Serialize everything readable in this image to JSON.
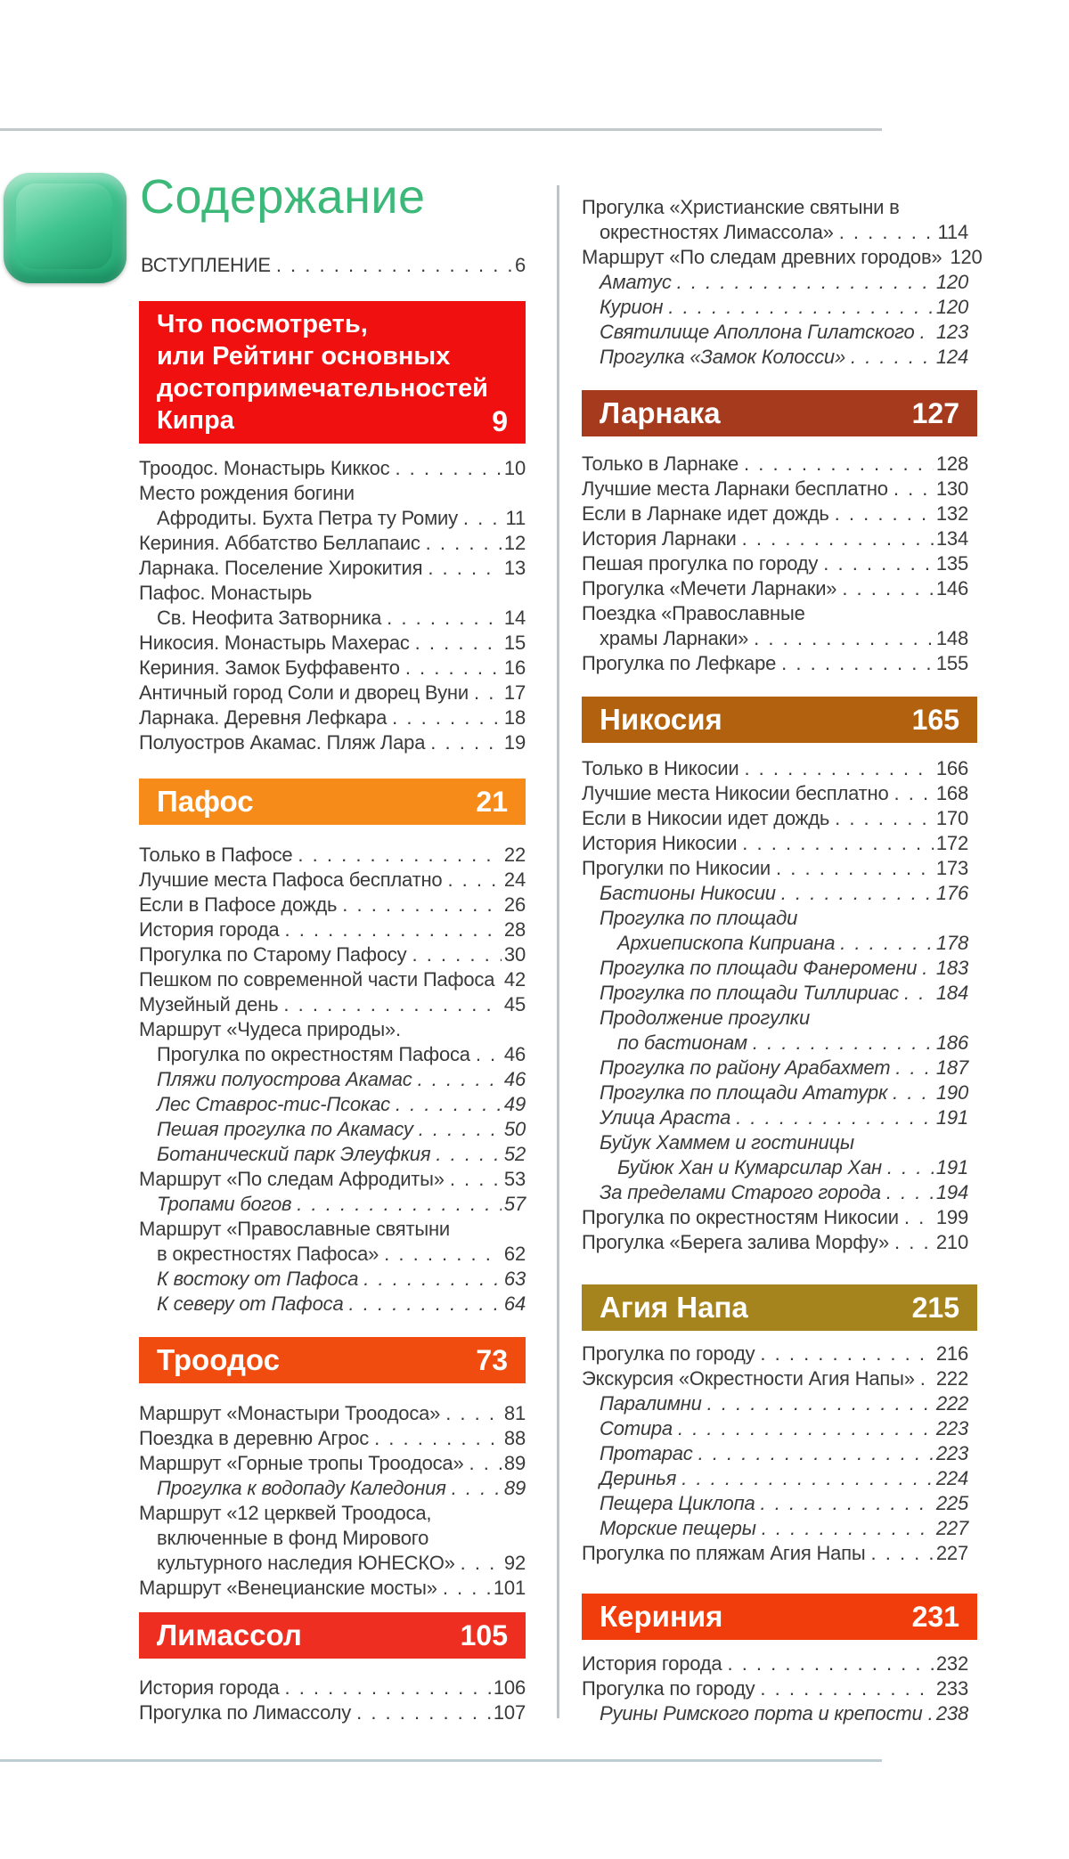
{
  "title": "Содержание",
  "intro": {
    "label": "ВСТУПЛЕНИЕ",
    "page": "6"
  },
  "colors": {
    "title_green": "#3cb878",
    "rating_red": "#f01010",
    "pafos_orange": "#f68b1a",
    "troodos_orange_red": "#f04c10",
    "limassol_red": "#ef2e22",
    "larnaka_brick": "#a53a1d",
    "nikosia_caramel": "#b2620f",
    "agia_napa_gold": "#a6841d",
    "kerinia_orange_red": "#f13c0c"
  },
  "columns": {
    "left": [
      {
        "type": "header",
        "id": "rating",
        "title_lines": [
          "Что посмотреть,",
          "или Рейтинг основных",
          "достопримечательностей",
          "Кипра"
        ],
        "page": "9",
        "color": "#f01010"
      },
      {
        "type": "list",
        "id": "rating-list",
        "entries": [
          {
            "text": "Троодос. Монастырь Киккос",
            "page": "10"
          },
          {
            "text": "Место рождения богини"
          },
          {
            "text": "Афродиты. Бухта Петра ту Ромиу",
            "page": "11",
            "indent": 1
          },
          {
            "text": "Кериния. Аббатство Беллапаис",
            "page": "12"
          },
          {
            "text": "Ларнака. Поселение Хирокития",
            "page": "13"
          },
          {
            "text": "Пафос. Монастырь"
          },
          {
            "text": "Св. Неофита Затворника",
            "page": "14",
            "indent": 1
          },
          {
            "text": "Никосия. Монастырь Махерас",
            "page": "15"
          },
          {
            "text": "Кериния. Замок Буффавенто",
            "page": "16"
          },
          {
            "text": "Античный город Соли и дворец Вуни",
            "page": "17"
          },
          {
            "text": "Ларнака. Деревня Лефкара",
            "page": "18"
          },
          {
            "text": "Полуостров Акамас. Пляж Лара",
            "page": "19"
          }
        ]
      },
      {
        "type": "header",
        "id": "pafos",
        "title_lines": [
          "Пафос"
        ],
        "page": "21",
        "color": "#f68b1a"
      },
      {
        "type": "list",
        "id": "pafos-list",
        "entries": [
          {
            "text": "Только в Пафосе",
            "page": "22"
          },
          {
            "text": "Лучшие места Пафоса бесплатно",
            "page": "24"
          },
          {
            "text": "Если в Пафосе дождь",
            "page": "26"
          },
          {
            "text": "История города",
            "page": "28"
          },
          {
            "text": "Прогулка по Старому Пафосу",
            "page": "30"
          },
          {
            "text": "Пешком по современной части Пафоса",
            "page": "42"
          },
          {
            "text": "Музейный день",
            "page": "45"
          },
          {
            "text": "Маршрут «Чудеса природы»."
          },
          {
            "text": "Прогулка по окрестностям Пафоса",
            "page": "46",
            "indent": 1
          },
          {
            "text": "Пляжи полуострова Акамас",
            "page": "46",
            "indent": 1,
            "italic": true
          },
          {
            "text": "Лес Ставрос-тис-Псокас",
            "page": "49",
            "indent": 1,
            "italic": true
          },
          {
            "text": "Пешая прогулка по Акамасу",
            "page": "50",
            "indent": 1,
            "italic": true
          },
          {
            "text": "Ботанический парк Элеуфкия",
            "page": "52",
            "indent": 1,
            "italic": true
          },
          {
            "text": "Маршрут «По следам Афродиты»",
            "page": "53"
          },
          {
            "text": "Тропами богов",
            "page": "57",
            "indent": 1,
            "italic": true
          },
          {
            "text": "Маршрут «Православные святыни"
          },
          {
            "text": "в окрестностях Пафоса»",
            "page": "62",
            "indent": 1
          },
          {
            "text": "К востоку от Пафоса",
            "page": "63",
            "indent": 1,
            "italic": true
          },
          {
            "text": "К северу от Пафоса",
            "page": "64",
            "indent": 1,
            "italic": true
          }
        ]
      },
      {
        "type": "header",
        "id": "troodos",
        "title_lines": [
          "Троодос"
        ],
        "page": "73",
        "color": "#f04c10"
      },
      {
        "type": "list",
        "id": "troodos-list",
        "entries": [
          {
            "text": "Маршрут «Монастыри Троодоса»",
            "page": "81"
          },
          {
            "text": "Поездка в деревню Агрос",
            "page": "88"
          },
          {
            "text": "Маршрут «Горные тропы Троодоса»",
            "page": "89"
          },
          {
            "text": "Прогулка к водопаду Каледония",
            "page": "89",
            "indent": 1,
            "italic": true
          },
          {
            "text": "Маршрут «12 церквей Троодоса,"
          },
          {
            "text": "включенные в фонд Мирового",
            "indent": 1
          },
          {
            "text": "культурного наследия ЮНЕСКО»",
            "page": "92",
            "indent": 1
          },
          {
            "text": "Маршрут «Венецианские мосты»",
            "page": "101"
          }
        ]
      },
      {
        "type": "header",
        "id": "limassol",
        "title_lines": [
          "Лимассол"
        ],
        "page": "105",
        "color": "#ef2e22"
      },
      {
        "type": "list",
        "id": "limassol-list",
        "entries": [
          {
            "text": "История города",
            "page": "106"
          },
          {
            "text": "Прогулка по Лимассолу",
            "page": "107"
          }
        ]
      }
    ],
    "right": [
      {
        "type": "list",
        "id": "limassol-cont-list",
        "entries": [
          {
            "text": "Прогулка «Христианские святыни в"
          },
          {
            "text": "окрестностях Лимассола»",
            "page": "114",
            "indent": 1
          },
          {
            "text": "Маршрут «По следам древних городов»",
            "page": "120"
          },
          {
            "text": "Аматус",
            "page": "120",
            "indent": 1,
            "italic": true
          },
          {
            "text": "Курион",
            "page": "120",
            "indent": 1,
            "italic": true
          },
          {
            "text": "Святилище Аполлона Гилатского",
            "page": "123",
            "indent": 1,
            "italic": true
          },
          {
            "text": "Прогулка «Замок Колосси»",
            "page": "124",
            "indent": 1,
            "italic": true
          }
        ]
      },
      {
        "type": "header",
        "id": "larnaka",
        "title_lines": [
          "Ларнака"
        ],
        "page": "127",
        "color": "#a53a1d"
      },
      {
        "type": "list",
        "id": "larnaka-list",
        "entries": [
          {
            "text": "Только в Ларнаке",
            "page": "128"
          },
          {
            "text": "Лучшие места Ларнаки бесплатно",
            "page": "130"
          },
          {
            "text": "Если в Ларнаке идет дождь",
            "page": "132"
          },
          {
            "text": "История Ларнаки",
            "page": "134"
          },
          {
            "text": "Пешая прогулка по городу",
            "page": "135"
          },
          {
            "text": "Прогулка «Мечети Ларнаки»",
            "page": "146"
          },
          {
            "text": "Поездка «Православные"
          },
          {
            "text": "храмы Ларнаки»",
            "page": "148",
            "indent": 1
          },
          {
            "text": "Прогулка по Лефкаре",
            "page": "155"
          }
        ]
      },
      {
        "type": "header",
        "id": "nikosia",
        "title_lines": [
          "Никосия"
        ],
        "page": "165",
        "color": "#b2620f"
      },
      {
        "type": "list",
        "id": "nikosia-list",
        "entries": [
          {
            "text": "Только в Никосии",
            "page": "166"
          },
          {
            "text": "Лучшие места Никосии бесплатно",
            "page": "168"
          },
          {
            "text": "Если в Никосии идет дождь",
            "page": "170"
          },
          {
            "text": "История Никосии",
            "page": "172"
          },
          {
            "text": "Прогулки по Никосии",
            "page": "173"
          },
          {
            "text": "Бастионы Никосии",
            "page": "176",
            "indent": 1,
            "italic": true
          },
          {
            "text": "Прогулка по площади",
            "indent": 1,
            "italic": true
          },
          {
            "text": "Архиепископа Киприана",
            "page": "178",
            "indent": 2,
            "italic": true
          },
          {
            "text": "Прогулка по площади Фанеромени",
            "page": "183",
            "indent": 1,
            "italic": true
          },
          {
            "text": "Прогулка по площади Тиллириас",
            "page": "184",
            "indent": 1,
            "italic": true
          },
          {
            "text": "Продолжение прогулки",
            "indent": 1,
            "italic": true
          },
          {
            "text": "по бастионам",
            "page": "186",
            "indent": 2,
            "italic": true
          },
          {
            "text": "Прогулка по району Арабахмет",
            "page": "187",
            "indent": 1,
            "italic": true
          },
          {
            "text": "Прогулка по площади Ататурк",
            "page": "190",
            "indent": 1,
            "italic": true
          },
          {
            "text": "Улица Араста",
            "page": "191",
            "indent": 1,
            "italic": true
          },
          {
            "text": "Буйук Хаммем и гостиницы",
            "indent": 1,
            "italic": true
          },
          {
            "text": "Буйюк Хан и Кумарсилар Хан",
            "page": "191",
            "indent": 2,
            "italic": true
          },
          {
            "text": "За пределами Старого города",
            "page": "194",
            "indent": 1,
            "italic": true
          },
          {
            "text": "Прогулка по окрестностям Никосии",
            "page": "199"
          },
          {
            "text": "Прогулка «Берега залива Морфу»",
            "page": "210"
          }
        ]
      },
      {
        "type": "header",
        "id": "agia-napa",
        "title_lines": [
          "Агия Напа"
        ],
        "page": "215",
        "color": "#a6841d"
      },
      {
        "type": "list",
        "id": "agia-napa-list",
        "entries": [
          {
            "text": "Прогулка по городу",
            "page": "216"
          },
          {
            "text": "Экскурсия «Окрестности Агия Напы»",
            "page": "222"
          },
          {
            "text": "Паралимни",
            "page": "222",
            "indent": 1,
            "italic": true
          },
          {
            "text": "Сотира",
            "page": "223",
            "indent": 1,
            "italic": true
          },
          {
            "text": "Протарас",
            "page": "223",
            "indent": 1,
            "italic": true
          },
          {
            "text": "Деринья",
            "page": "224",
            "indent": 1,
            "italic": true
          },
          {
            "text": "Пещера Циклопа",
            "page": "225",
            "indent": 1,
            "italic": true
          },
          {
            "text": "Морские пещеры",
            "page": "227",
            "indent": 1,
            "italic": true
          },
          {
            "text": "Прогулка по пляжам Агия Напы",
            "page": "227"
          }
        ]
      },
      {
        "type": "header",
        "id": "kerinia",
        "title_lines": [
          "Кериния"
        ],
        "page": "231",
        "color": "#f13c0c"
      },
      {
        "type": "list",
        "id": "kerinia-list",
        "entries": [
          {
            "text": "История города",
            "page": "232"
          },
          {
            "text": "Прогулка по городу",
            "page": "233"
          },
          {
            "text": "Руины Римского порта и крепости",
            "page": "238",
            "indent": 1,
            "italic": true
          }
        ]
      }
    ]
  }
}
